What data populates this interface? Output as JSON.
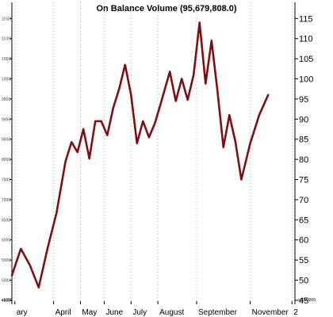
{
  "chart_data": {
    "type": "line",
    "title": "On Balance Volume (95,679,808.0)",
    "xlabel": "",
    "ylabel": "",
    "line_color": "#7f0f12",
    "grid": "vertical dotted lines at month ticks",
    "y_right": {
      "ticks": [
        45,
        50,
        55,
        60,
        65,
        70,
        75,
        80,
        85,
        90,
        95,
        100,
        105,
        110,
        115
      ],
      "ylim": [
        44,
        119
      ],
      "scale_label": "x1000000"
    },
    "y_left": {
      "ticks": [
        "4500",
        "5000",
        "5500",
        "6000",
        "6500",
        "7000",
        "7500",
        "8000",
        "8500",
        "9000",
        "9500",
        "10000",
        "10500",
        "11000",
        "11500"
      ],
      "scale_label": "x1000"
    },
    "months": [
      {
        "label": "ary",
        "at": 1
      },
      {
        "label": "April",
        "at": 14
      },
      {
        "label": "May",
        "at": 23
      },
      {
        "label": "June",
        "at": 31
      },
      {
        "label": "July",
        "at": 40
      },
      {
        "label": "August",
        "at": 49
      },
      {
        "label": "September",
        "at": 62
      },
      {
        "label": "November",
        "at": 80
      },
      {
        "label": "2",
        "at": 94
      }
    ],
    "xlim": [
      0,
      95
    ],
    "points": [
      [
        0,
        51.2
      ],
      [
        3,
        57.8
      ],
      [
        6,
        53.8
      ],
      [
        9,
        48.2
      ],
      [
        12,
        58.0
      ],
      [
        15,
        66.8
      ],
      [
        18,
        79.5
      ],
      [
        20,
        84.3
      ],
      [
        22,
        81.8
      ],
      [
        24,
        87.5
      ],
      [
        26,
        80.2
      ],
      [
        28,
        89.5
      ],
      [
        30,
        89.5
      ],
      [
        32,
        86.0
      ],
      [
        34,
        92.8
      ],
      [
        36,
        97.5
      ],
      [
        38,
        103.5
      ],
      [
        40,
        96.0
      ],
      [
        42,
        84.0
      ],
      [
        44,
        89.5
      ],
      [
        46,
        85.5
      ],
      [
        48,
        89.0
      ],
      [
        50,
        94.0
      ],
      [
        53,
        101.8
      ],
      [
        55,
        94.5
      ],
      [
        57,
        100.0
      ],
      [
        59,
        94.8
      ],
      [
        61,
        101.0
      ],
      [
        63,
        114.0
      ],
      [
        65,
        98.8
      ],
      [
        67,
        109.5
      ],
      [
        69,
        97.0
      ],
      [
        71,
        83.0
      ],
      [
        73,
        91.0
      ],
      [
        75,
        84.5
      ],
      [
        77,
        75.0
      ],
      [
        80,
        84.0
      ],
      [
        83,
        91.0
      ],
      [
        86,
        96.0
      ]
    ]
  }
}
